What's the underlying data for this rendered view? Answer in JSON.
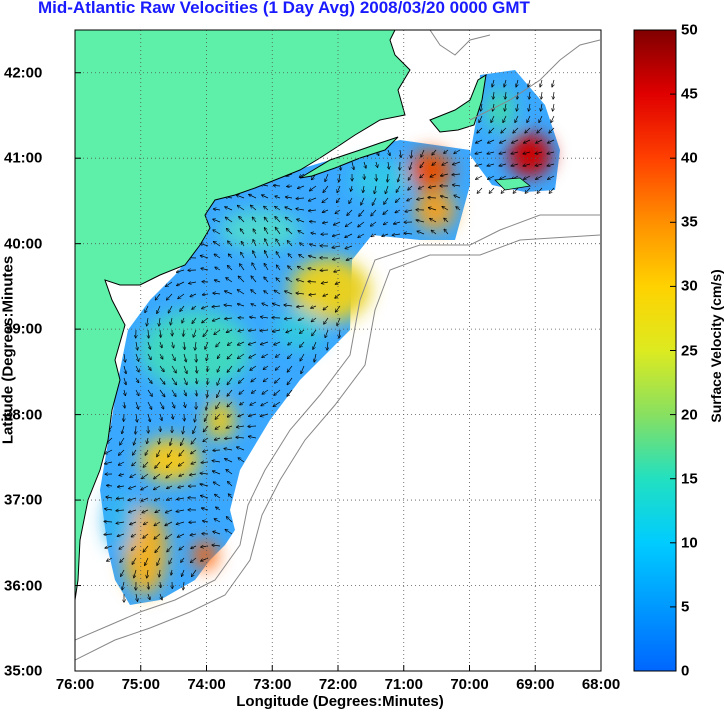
{
  "title": "Mid-Atlantic Raw Velocities (1 Day Avg) 2008/03/20 0000 GMT",
  "map": {
    "xlabel": "Longitude (Degrees:Minutes)",
    "ylabel": "Latitude (Degrees:Minutes",
    "x_ticks": [
      "76:00",
      "75:00",
      "74:00",
      "73:00",
      "72:00",
      "71:00",
      "70:00",
      "69:00",
      "68:00"
    ],
    "y_ticks": [
      "42:00",
      "41:00",
      "40:00",
      "39:00",
      "38:00",
      "37:00",
      "36:00",
      "35:00"
    ],
    "lon_range": [
      -76,
      -68
    ],
    "lat_range": [
      35,
      42.5
    ],
    "colors": {
      "land": "#5ef0a8",
      "coast": "#000000",
      "bathymetry": "#888888"
    }
  },
  "colorbar": {
    "label": "Surface Velocity (cm/s)",
    "ticks": [
      "50",
      "45",
      "40",
      "35",
      "30",
      "25",
      "20",
      "15",
      "10",
      "5",
      "0"
    ],
    "range": [
      0,
      50
    ]
  }
}
